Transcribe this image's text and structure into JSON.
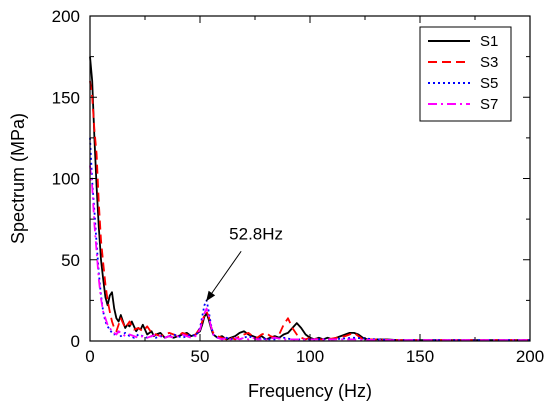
{
  "chart_data": {
    "type": "line",
    "xlabel": "Frequency (Hz)",
    "ylabel": "Spectrum (MPa)",
    "xlim": [
      0,
      200
    ],
    "ylim": [
      0,
      200
    ],
    "x_ticks": [
      0,
      50,
      100,
      150,
      200
    ],
    "y_ticks": [
      0,
      50,
      100,
      150,
      200
    ],
    "grid": false,
    "legend_position": "top-right",
    "annotation": {
      "text": "52.8Hz",
      "target": [
        52.8,
        22
      ]
    },
    "series": [
      {
        "name": "S1",
        "color": "#000000",
        "dash": "solid",
        "points": [
          [
            0,
            175
          ],
          [
            1,
            160
          ],
          [
            2,
            125
          ],
          [
            3,
            95
          ],
          [
            4,
            70
          ],
          [
            5,
            50
          ],
          [
            6,
            38
          ],
          [
            7,
            27
          ],
          [
            8,
            22
          ],
          [
            9,
            28
          ],
          [
            10,
            30
          ],
          [
            11,
            20
          ],
          [
            12,
            14
          ],
          [
            13,
            12
          ],
          [
            14,
            16
          ],
          [
            15,
            12
          ],
          [
            16,
            8
          ],
          [
            17,
            10
          ],
          [
            18,
            9
          ],
          [
            19,
            12
          ],
          [
            20,
            9
          ],
          [
            21,
            6
          ],
          [
            22,
            8
          ],
          [
            23,
            7
          ],
          [
            24,
            10
          ],
          [
            25,
            7
          ],
          [
            26,
            4
          ],
          [
            27,
            5
          ],
          [
            28,
            6
          ],
          [
            29,
            3
          ],
          [
            30,
            4
          ],
          [
            32,
            5
          ],
          [
            34,
            2
          ],
          [
            36,
            3
          ],
          [
            38,
            2
          ],
          [
            40,
            3
          ],
          [
            42,
            4
          ],
          [
            44,
            5
          ],
          [
            46,
            3
          ],
          [
            48,
            4
          ],
          [
            50,
            6
          ],
          [
            51,
            10
          ],
          [
            52,
            15
          ],
          [
            53,
            17
          ],
          [
            54,
            13
          ],
          [
            55,
            8
          ],
          [
            56,
            4
          ],
          [
            58,
            2
          ],
          [
            60,
            3
          ],
          [
            62,
            1
          ],
          [
            64,
            2
          ],
          [
            66,
            3
          ],
          [
            68,
            5
          ],
          [
            70,
            6
          ],
          [
            72,
            4
          ],
          [
            74,
            3
          ],
          [
            76,
            2
          ],
          [
            78,
            3
          ],
          [
            80,
            1
          ],
          [
            82,
            2
          ],
          [
            84,
            3
          ],
          [
            86,
            2
          ],
          [
            88,
            4
          ],
          [
            90,
            5
          ],
          [
            92,
            8
          ],
          [
            94,
            11
          ],
          [
            96,
            8
          ],
          [
            98,
            4
          ],
          [
            100,
            2
          ],
          [
            102,
            1
          ],
          [
            104,
            2
          ],
          [
            106,
            1
          ],
          [
            108,
            2
          ],
          [
            110,
            1
          ],
          [
            112,
            2
          ],
          [
            114,
            3
          ],
          [
            116,
            4
          ],
          [
            118,
            5
          ],
          [
            120,
            5
          ],
          [
            122,
            4
          ],
          [
            124,
            2
          ],
          [
            126,
            1
          ],
          [
            130,
            1
          ],
          [
            135,
            1
          ],
          [
            140,
            0.5
          ],
          [
            150,
            0.5
          ],
          [
            160,
            0.5
          ],
          [
            170,
            0.5
          ],
          [
            180,
            0.5
          ],
          [
            190,
            0.5
          ],
          [
            200,
            0.5
          ]
        ]
      },
      {
        "name": "S3",
        "color": "#ff0000",
        "dash": "dashed",
        "points": [
          [
            0,
            160
          ],
          [
            1,
            150
          ],
          [
            2,
            130
          ],
          [
            3,
            115
          ],
          [
            4,
            85
          ],
          [
            5,
            62
          ],
          [
            6,
            48
          ],
          [
            7,
            35
          ],
          [
            8,
            25
          ],
          [
            9,
            18
          ],
          [
            10,
            12
          ],
          [
            11,
            8
          ],
          [
            12,
            6
          ],
          [
            13,
            10
          ],
          [
            14,
            14
          ],
          [
            15,
            11
          ],
          [
            16,
            8
          ],
          [
            17,
            10
          ],
          [
            18,
            12
          ],
          [
            19,
            9
          ],
          [
            20,
            7
          ],
          [
            22,
            8
          ],
          [
            24,
            6
          ],
          [
            26,
            9
          ],
          [
            28,
            5
          ],
          [
            30,
            4
          ],
          [
            32,
            3
          ],
          [
            34,
            4
          ],
          [
            36,
            5
          ],
          [
            38,
            4
          ],
          [
            40,
            3
          ],
          [
            42,
            5
          ],
          [
            44,
            4
          ],
          [
            46,
            3
          ],
          [
            48,
            4
          ],
          [
            50,
            8
          ],
          [
            51,
            12
          ],
          [
            52,
            16
          ],
          [
            53,
            18
          ],
          [
            54,
            15
          ],
          [
            55,
            9
          ],
          [
            56,
            5
          ],
          [
            58,
            3
          ],
          [
            60,
            2
          ],
          [
            62,
            1
          ],
          [
            64,
            2
          ],
          [
            66,
            1
          ],
          [
            68,
            3
          ],
          [
            70,
            4
          ],
          [
            72,
            5
          ],
          [
            74,
            3
          ],
          [
            76,
            2
          ],
          [
            78,
            4
          ],
          [
            80,
            5
          ],
          [
            82,
            3
          ],
          [
            84,
            2
          ],
          [
            86,
            4
          ],
          [
            88,
            10
          ],
          [
            90,
            14
          ],
          [
            92,
            8
          ],
          [
            94,
            4
          ],
          [
            96,
            2
          ],
          [
            98,
            1
          ],
          [
            100,
            2
          ],
          [
            104,
            1
          ],
          [
            108,
            1
          ],
          [
            112,
            2
          ],
          [
            116,
            3
          ],
          [
            118,
            4
          ],
          [
            120,
            5
          ],
          [
            122,
            3
          ],
          [
            124,
            1
          ],
          [
            130,
            1
          ],
          [
            140,
            0.5
          ],
          [
            150,
            0.5
          ],
          [
            160,
            0.5
          ],
          [
            170,
            0.5
          ],
          [
            180,
            0.5
          ],
          [
            190,
            0.5
          ],
          [
            200,
            0.5
          ]
        ]
      },
      {
        "name": "S5",
        "color": "#0000ff",
        "dash": "dotted",
        "points": [
          [
            0,
            125
          ],
          [
            1,
            98
          ],
          [
            2,
            80
          ],
          [
            3,
            60
          ],
          [
            4,
            42
          ],
          [
            5,
            28
          ],
          [
            6,
            18
          ],
          [
            7,
            12
          ],
          [
            8,
            9
          ],
          [
            9,
            7
          ],
          [
            10,
            5
          ],
          [
            11,
            4
          ],
          [
            12,
            6
          ],
          [
            13,
            5
          ],
          [
            14,
            3
          ],
          [
            15,
            4
          ],
          [
            16,
            5
          ],
          [
            18,
            3
          ],
          [
            20,
            2
          ],
          [
            22,
            4
          ],
          [
            24,
            3
          ],
          [
            26,
            2
          ],
          [
            28,
            3
          ],
          [
            30,
            2
          ],
          [
            32,
            3
          ],
          [
            34,
            2
          ],
          [
            36,
            3
          ],
          [
            38,
            4
          ],
          [
            40,
            3
          ],
          [
            42,
            2
          ],
          [
            44,
            3
          ],
          [
            46,
            4
          ],
          [
            48,
            3
          ],
          [
            50,
            8
          ],
          [
            51,
            15
          ],
          [
            52,
            22
          ],
          [
            53,
            25
          ],
          [
            54,
            18
          ],
          [
            55,
            10
          ],
          [
            56,
            4
          ],
          [
            58,
            2
          ],
          [
            60,
            1
          ],
          [
            62,
            2
          ],
          [
            64,
            1
          ],
          [
            66,
            2
          ],
          [
            68,
            1
          ],
          [
            70,
            2
          ],
          [
            72,
            3
          ],
          [
            74,
            2
          ],
          [
            76,
            1
          ],
          [
            78,
            2
          ],
          [
            80,
            1
          ],
          [
            84,
            1
          ],
          [
            88,
            2
          ],
          [
            92,
            1
          ],
          [
            96,
            1
          ],
          [
            100,
            1
          ],
          [
            110,
            1
          ],
          [
            120,
            2
          ],
          [
            130,
            1
          ],
          [
            140,
            0.5
          ],
          [
            150,
            0.5
          ],
          [
            160,
            0.5
          ],
          [
            170,
            0.5
          ],
          [
            180,
            0.5
          ],
          [
            190,
            0.5
          ],
          [
            200,
            0.5
          ]
        ]
      },
      {
        "name": "S7",
        "color": "#ff00ff",
        "dash": "dashdot",
        "points": [
          [
            0,
            108
          ],
          [
            1,
            95
          ],
          [
            2,
            72
          ],
          [
            3,
            55
          ],
          [
            4,
            38
          ],
          [
            5,
            26
          ],
          [
            6,
            18
          ],
          [
            7,
            14
          ],
          [
            8,
            10
          ],
          [
            9,
            8
          ],
          [
            10,
            6
          ],
          [
            11,
            5
          ],
          [
            12,
            4
          ],
          [
            13,
            6
          ],
          [
            14,
            5
          ],
          [
            15,
            4
          ],
          [
            16,
            3
          ],
          [
            18,
            4
          ],
          [
            20,
            3
          ],
          [
            22,
            2
          ],
          [
            24,
            3
          ],
          [
            26,
            2
          ],
          [
            28,
            3
          ],
          [
            30,
            4
          ],
          [
            32,
            3
          ],
          [
            34,
            2
          ],
          [
            36,
            3
          ],
          [
            38,
            2
          ],
          [
            40,
            3
          ],
          [
            42,
            4
          ],
          [
            44,
            3
          ],
          [
            46,
            2
          ],
          [
            48,
            3
          ],
          [
            50,
            7
          ],
          [
            51,
            12
          ],
          [
            52,
            17
          ],
          [
            53,
            20
          ],
          [
            54,
            15
          ],
          [
            55,
            9
          ],
          [
            56,
            4
          ],
          [
            58,
            2
          ],
          [
            60,
            1
          ],
          [
            62,
            2
          ],
          [
            64,
            1
          ],
          [
            66,
            2
          ],
          [
            68,
            1
          ],
          [
            70,
            2
          ],
          [
            72,
            1
          ],
          [
            74,
            2
          ],
          [
            76,
            1
          ],
          [
            80,
            1
          ],
          [
            84,
            2
          ],
          [
            88,
            1
          ],
          [
            92,
            1
          ],
          [
            96,
            1
          ],
          [
            100,
            1
          ],
          [
            110,
            1
          ],
          [
            120,
            1
          ],
          [
            130,
            0.5
          ],
          [
            140,
            0.5
          ],
          [
            150,
            0.5
          ],
          [
            160,
            0.5
          ],
          [
            170,
            0.5
          ],
          [
            180,
            0.5
          ],
          [
            190,
            0.5
          ],
          [
            200,
            0.5
          ]
        ]
      }
    ]
  }
}
